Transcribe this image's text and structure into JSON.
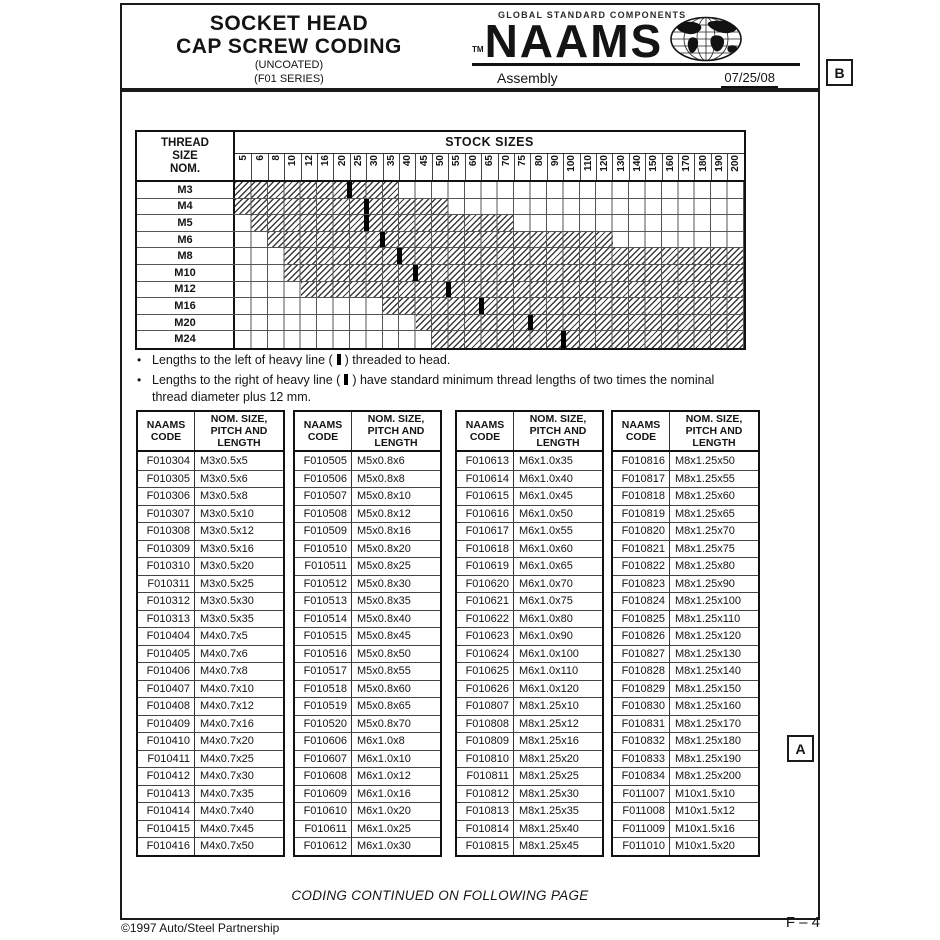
{
  "page": {
    "header": {
      "title_lines": [
        "SOCKET HEAD",
        "CAP SCREW CODING"
      ],
      "subtitle_lines": [
        "(UNCOATED)",
        "(F01 SERIES)"
      ],
      "brand": {
        "tagline": "GLOBAL STANDARD COMPONENTS",
        "tm": "TM",
        "name": "NAAMS",
        "section_label": "Assembly",
        "date": "07/25/08"
      },
      "revision_letter": "B"
    },
    "zone_letter": "A",
    "footer": {
      "continued": "CODING CONTINUED ON FOLLOWING PAGE",
      "copyright": "©1997 Auto/Steel Partnership",
      "page_code": "F – 4"
    }
  },
  "chart_data": {
    "type": "heatmap",
    "title": "STOCK SIZES",
    "row_header_lines": [
      "THREAD",
      "SIZE",
      "NOM."
    ],
    "x_categories": [
      "5",
      "6",
      "8",
      "10",
      "12",
      "16",
      "20",
      "25",
      "30",
      "35",
      "40",
      "45",
      "50",
      "55",
      "60",
      "65",
      "70",
      "75",
      "80",
      "90",
      "100",
      "110",
      "120",
      "130",
      "140",
      "150",
      "160",
      "170",
      "180",
      "190",
      "200"
    ],
    "rows": [
      {
        "thread": "M3",
        "stocked_from": "5",
        "stocked_to": "35",
        "threaded_to_head_through": "20"
      },
      {
        "thread": "M4",
        "stocked_from": "5",
        "stocked_to": "50",
        "threaded_to_head_through": "25"
      },
      {
        "thread": "M5",
        "stocked_from": "6",
        "stocked_to": "70",
        "threaded_to_head_through": "25"
      },
      {
        "thread": "M6",
        "stocked_from": "8",
        "stocked_to": "120",
        "threaded_to_head_through": "30"
      },
      {
        "thread": "M8",
        "stocked_from": "10",
        "stocked_to": "200",
        "threaded_to_head_through": "35"
      },
      {
        "thread": "M10",
        "stocked_from": "10",
        "stocked_to": "200",
        "threaded_to_head_through": "40"
      },
      {
        "thread": "M12",
        "stocked_from": "12",
        "stocked_to": "200",
        "threaded_to_head_through": "50"
      },
      {
        "thread": "M16",
        "stocked_from": "35",
        "stocked_to": "200",
        "threaded_to_head_through": "60"
      },
      {
        "thread": "M20",
        "stocked_from": "45",
        "stocked_to": "200",
        "threaded_to_head_through": "75"
      },
      {
        "thread": "M24",
        "stocked_from": "50",
        "stocked_to": "200",
        "threaded_to_head_through": "90"
      }
    ]
  },
  "notes": [
    {
      "pre": "Lengths to the left of heavy line (",
      "post": ") threaded to head."
    },
    {
      "pre": "Lengths to the right of heavy line  (",
      "post": ") have standard minimum thread lengths of two times the nominal thread diameter plus 12 mm."
    }
  ],
  "code_tables": {
    "code_header_lines": [
      "NAAMS",
      "CODE"
    ],
    "size_header_lines": [
      "NOM. SIZE,",
      "PITCH AND",
      "LENGTH"
    ],
    "tables": [
      {
        "rows": [
          [
            "F010304",
            "M3x0.5x5"
          ],
          [
            "F010305",
            "M3x0.5x6"
          ],
          [
            "F010306",
            "M3x0.5x8"
          ],
          [
            "F010307",
            "M3x0.5x10"
          ],
          [
            "F010308",
            "M3x0.5x12"
          ],
          [
            "F010309",
            "M3x0.5x16"
          ],
          [
            "F010310",
            "M3x0.5x20"
          ],
          [
            "F010311",
            "M3x0.5x25"
          ],
          [
            "F010312",
            "M3x0.5x30"
          ],
          [
            "F010313",
            "M3x0.5x35"
          ],
          [
            "F010404",
            "M4x0.7x5"
          ],
          [
            "F010405",
            "M4x0.7x6"
          ],
          [
            "F010406",
            "M4x0.7x8"
          ],
          [
            "F010407",
            "M4x0.7x10"
          ],
          [
            "F010408",
            "M4x0.7x12"
          ],
          [
            "F010409",
            "M4x0.7x16"
          ],
          [
            "F010410",
            "M4x0.7x20"
          ],
          [
            "F010411",
            "M4x0.7x25"
          ],
          [
            "F010412",
            "M4x0.7x30"
          ],
          [
            "F010413",
            "M4x0.7x35"
          ],
          [
            "F010414",
            "M4x0.7x40"
          ],
          [
            "F010415",
            "M4x0.7x45"
          ],
          [
            "F010416",
            "M4x0.7x50"
          ]
        ]
      },
      {
        "rows": [
          [
            "F010505",
            "M5x0.8x6"
          ],
          [
            "F010506",
            "M5x0.8x8"
          ],
          [
            "F010507",
            "M5x0.8x10"
          ],
          [
            "F010508",
            "M5x0.8x12"
          ],
          [
            "F010509",
            "M5x0.8x16"
          ],
          [
            "F010510",
            "M5x0.8x20"
          ],
          [
            "F010511",
            "M5x0.8x25"
          ],
          [
            "F010512",
            "M5x0.8x30"
          ],
          [
            "F010513",
            "M5x0.8x35"
          ],
          [
            "F010514",
            "M5x0.8x40"
          ],
          [
            "F010515",
            "M5x0.8x45"
          ],
          [
            "F010516",
            "M5x0.8x50"
          ],
          [
            "F010517",
            "M5x0.8x55"
          ],
          [
            "F010518",
            "M5x0.8x60"
          ],
          [
            "F010519",
            "M5x0.8x65"
          ],
          [
            "F010520",
            "M5x0.8x70"
          ],
          [
            "F010606",
            "M6x1.0x8"
          ],
          [
            "F010607",
            "M6x1.0x10"
          ],
          [
            "F010608",
            "M6x1.0x12"
          ],
          [
            "F010609",
            "M6x1.0x16"
          ],
          [
            "F010610",
            "M6x1.0x20"
          ],
          [
            "F010611",
            "M6x1.0x25"
          ],
          [
            "F010612",
            "M6x1.0x30"
          ]
        ]
      },
      {
        "rows": [
          [
            "F010613",
            "M6x1.0x35"
          ],
          [
            "F010614",
            "M6x1.0x40"
          ],
          [
            "F010615",
            "M6x1.0x45"
          ],
          [
            "F010616",
            "M6x1.0x50"
          ],
          [
            "F010617",
            "M6x1.0x55"
          ],
          [
            "F010618",
            "M6x1.0x60"
          ],
          [
            "F010619",
            "M6x1.0x65"
          ],
          [
            "F010620",
            "M6x1.0x70"
          ],
          [
            "F010621",
            "M6x1.0x75"
          ],
          [
            "F010622",
            "M6x1.0x80"
          ],
          [
            "F010623",
            "M6x1.0x90"
          ],
          [
            "F010624",
            "M6x1.0x100"
          ],
          [
            "F010625",
            "M6x1.0x110"
          ],
          [
            "F010626",
            "M6x1.0x120"
          ],
          [
            "F010807",
            "M8x1.25x10"
          ],
          [
            "F010808",
            "M8x1.25x12"
          ],
          [
            "F010809",
            "M8x1.25x16"
          ],
          [
            "F010810",
            "M8x1.25x20"
          ],
          [
            "F010811",
            "M8x1.25x25"
          ],
          [
            "F010812",
            "M8x1.25x30"
          ],
          [
            "F010813",
            "M8x1.25x35"
          ],
          [
            "F010814",
            "M8x1.25x40"
          ],
          [
            "F010815",
            "M8x1.25x45"
          ]
        ]
      },
      {
        "rows": [
          [
            "F010816",
            "M8x1.25x50"
          ],
          [
            "F010817",
            "M8x1.25x55"
          ],
          [
            "F010818",
            "M8x1.25x60"
          ],
          [
            "F010819",
            "M8x1.25x65"
          ],
          [
            "F010820",
            "M8x1.25x70"
          ],
          [
            "F010821",
            "M8x1.25x75"
          ],
          [
            "F010822",
            "M8x1.25x80"
          ],
          [
            "F010823",
            "M8x1.25x90"
          ],
          [
            "F010824",
            "M8x1.25x100"
          ],
          [
            "F010825",
            "M8x1.25x110"
          ],
          [
            "F010826",
            "M8x1.25x120"
          ],
          [
            "F010827",
            "M8x1.25x130"
          ],
          [
            "F010828",
            "M8x1.25x140"
          ],
          [
            "F010829",
            "M8x1.25x150"
          ],
          [
            "F010830",
            "M8x1.25x160"
          ],
          [
            "F010831",
            "M8x1.25x170"
          ],
          [
            "F010832",
            "M8x1.25x180"
          ],
          [
            "F010833",
            "M8x1.25x190"
          ],
          [
            "F010834",
            "M8x1.25x200"
          ],
          [
            "F011007",
            "M10x1.5x10"
          ],
          [
            "F011008",
            "M10x1.5x12"
          ],
          [
            "F011009",
            "M10x1.5x16"
          ],
          [
            "F011010",
            "M10x1.5x20"
          ]
        ]
      }
    ]
  },
  "colors": {
    "ink": "#141414",
    "grid": "#555555",
    "hatch": "#3c3c3c"
  }
}
